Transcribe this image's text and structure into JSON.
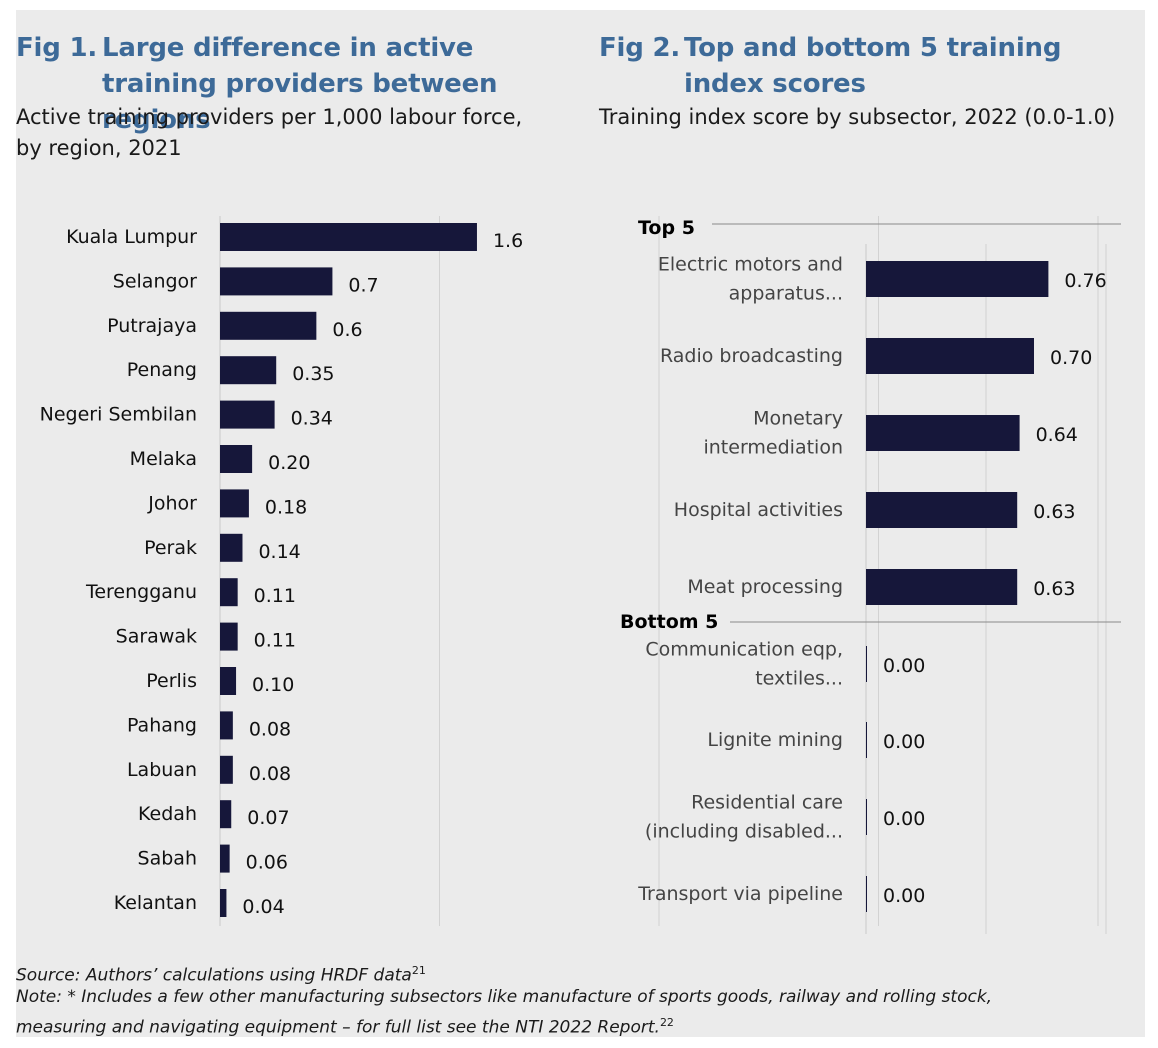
{
  "figure1": {
    "number": "Fig 1.",
    "title": "Large difference in active training providers between regions",
    "subtitle_line1": "Active training providers per 1,000 labour force,",
    "subtitle_line2": "by region, 2021"
  },
  "figure2": {
    "number": "Fig 2.",
    "title": "Top and bottom 5 training index scores",
    "subtitle": "Training index score by subsector, 2022 (0.0-1.0)"
  },
  "colors": {
    "bar": "#16173a",
    "title": "#3d6a98",
    "panel": "#ebebeb",
    "grid": "#d2d2d2"
  },
  "chart_data": [
    {
      "type": "bar",
      "orientation": "horizontal",
      "categories": [
        "Kuala Lumpur",
        "Selangor",
        "Putrajaya",
        "Penang",
        "Negeri Sembilan",
        "Melaka",
        "Johor",
        "Perak",
        "Terengganu",
        "Sarawak",
        "Perlis",
        "Pahang",
        "Labuan",
        "Kedah",
        "Sabah",
        "Kelantan"
      ],
      "values": [
        1.6,
        0.7,
        0.6,
        0.35,
        0.34,
        0.2,
        0.18,
        0.14,
        0.11,
        0.11,
        0.1,
        0.08,
        0.08,
        0.07,
        0.06,
        0.04
      ],
      "value_labels": [
        "1.6",
        "0.7",
        "0.6",
        "0.35",
        "0.34",
        "0.20",
        "0.18",
        "0.14",
        "0.11",
        "0.11",
        "0.10",
        "0.08",
        "0.08",
        "0.07",
        "0.06",
        "0.04"
      ],
      "xlim": [
        0,
        2.0
      ],
      "grid": true
    },
    {
      "type": "bar",
      "orientation": "horizontal",
      "groups": [
        {
          "name": "Top 5",
          "categories": [
            [
              "Electric motors and",
              "apparatus..."
            ],
            [
              "Radio broadcasting"
            ],
            [
              "Monetary",
              "intermediation"
            ],
            [
              "Hospital activities"
            ],
            [
              "Meat processing"
            ]
          ],
          "values": [
            0.76,
            0.7,
            0.64,
            0.63,
            0.63
          ],
          "value_labels": [
            "0.76",
            "0.70",
            "0.64",
            "0.63",
            "0.63"
          ]
        },
        {
          "name": "Bottom 5",
          "categories": [
            [
              "Communication eqp,",
              "textiles..."
            ],
            [
              "Lignite mining"
            ],
            [
              "Residential care",
              "(including disabled..."
            ],
            [
              "Transport via pipeline"
            ]
          ],
          "values": [
            0.0,
            0.0,
            0.0,
            0.0
          ],
          "value_labels": [
            "0.00",
            "0.00",
            "0.00",
            "0.00"
          ]
        }
      ],
      "xlim": [
        0,
        1.0
      ],
      "grid": true
    }
  ],
  "footer": {
    "source": "Source: Authors’ calculations using HRDF data",
    "source_ref": "21",
    "note_line1": "Note: * Includes a few other manufacturing subsectors like manufacture of sports goods, railway and rolling stock,",
    "note_line2": "measuring and navigating equipment – for full list see the NTI 2022 Report.",
    "note_ref": "22"
  }
}
